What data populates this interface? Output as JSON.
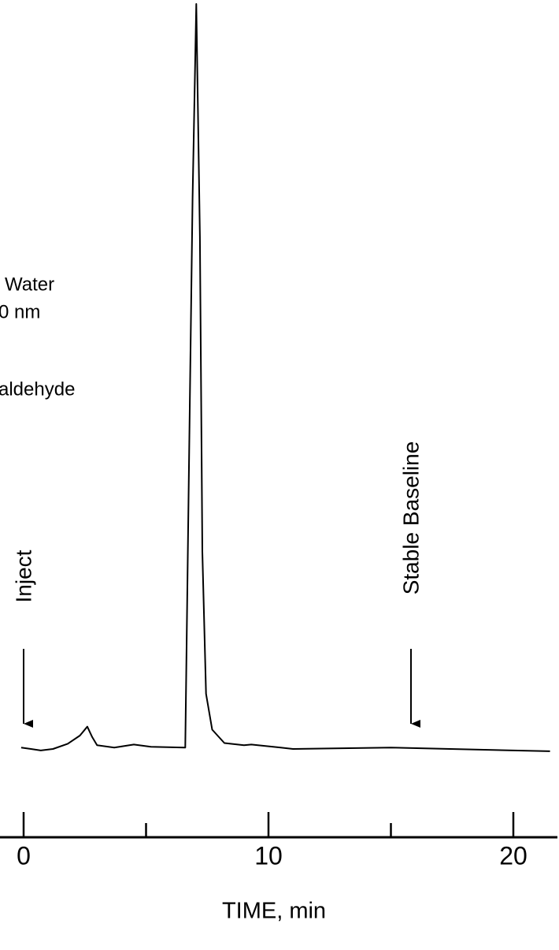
{
  "chart_data": {
    "type": "line",
    "x_label": "TIME, min",
    "annotations": [
      "Water",
      "0 nm",
      "aldehyde",
      "Inject",
      "Stable Baseline"
    ],
    "xlim": [
      -1,
      21.8
    ],
    "ylim": [
      -1,
      100
    ],
    "xticks": [
      0,
      10,
      20
    ],
    "minor_xticks": [
      5,
      15
    ],
    "color": "#000000",
    "series": [
      {
        "x": [
          -0.1,
          0.3,
          0.7,
          1.2,
          1.8,
          2.3,
          2.6,
          2.8,
          3.0,
          3.7,
          4.5,
          5.2,
          6.6,
          6.75,
          6.9,
          7.05,
          7.2,
          7.3,
          7.45,
          7.7,
          8.2,
          9.0,
          9.3,
          10.5,
          11,
          15,
          20,
          21.5
        ],
        "values": [
          0.2,
          0,
          -0.2,
          0,
          0.7,
          1.8,
          3.0,
          1.6,
          0.5,
          0.2,
          0.6,
          0.3,
          0.2,
          37,
          74,
          100,
          68.8,
          26.5,
          7.4,
          2.6,
          0.8,
          0.5,
          0.6,
          0.2,
          0,
          0.2,
          -0.2,
          -0.3
        ]
      }
    ]
  }
}
